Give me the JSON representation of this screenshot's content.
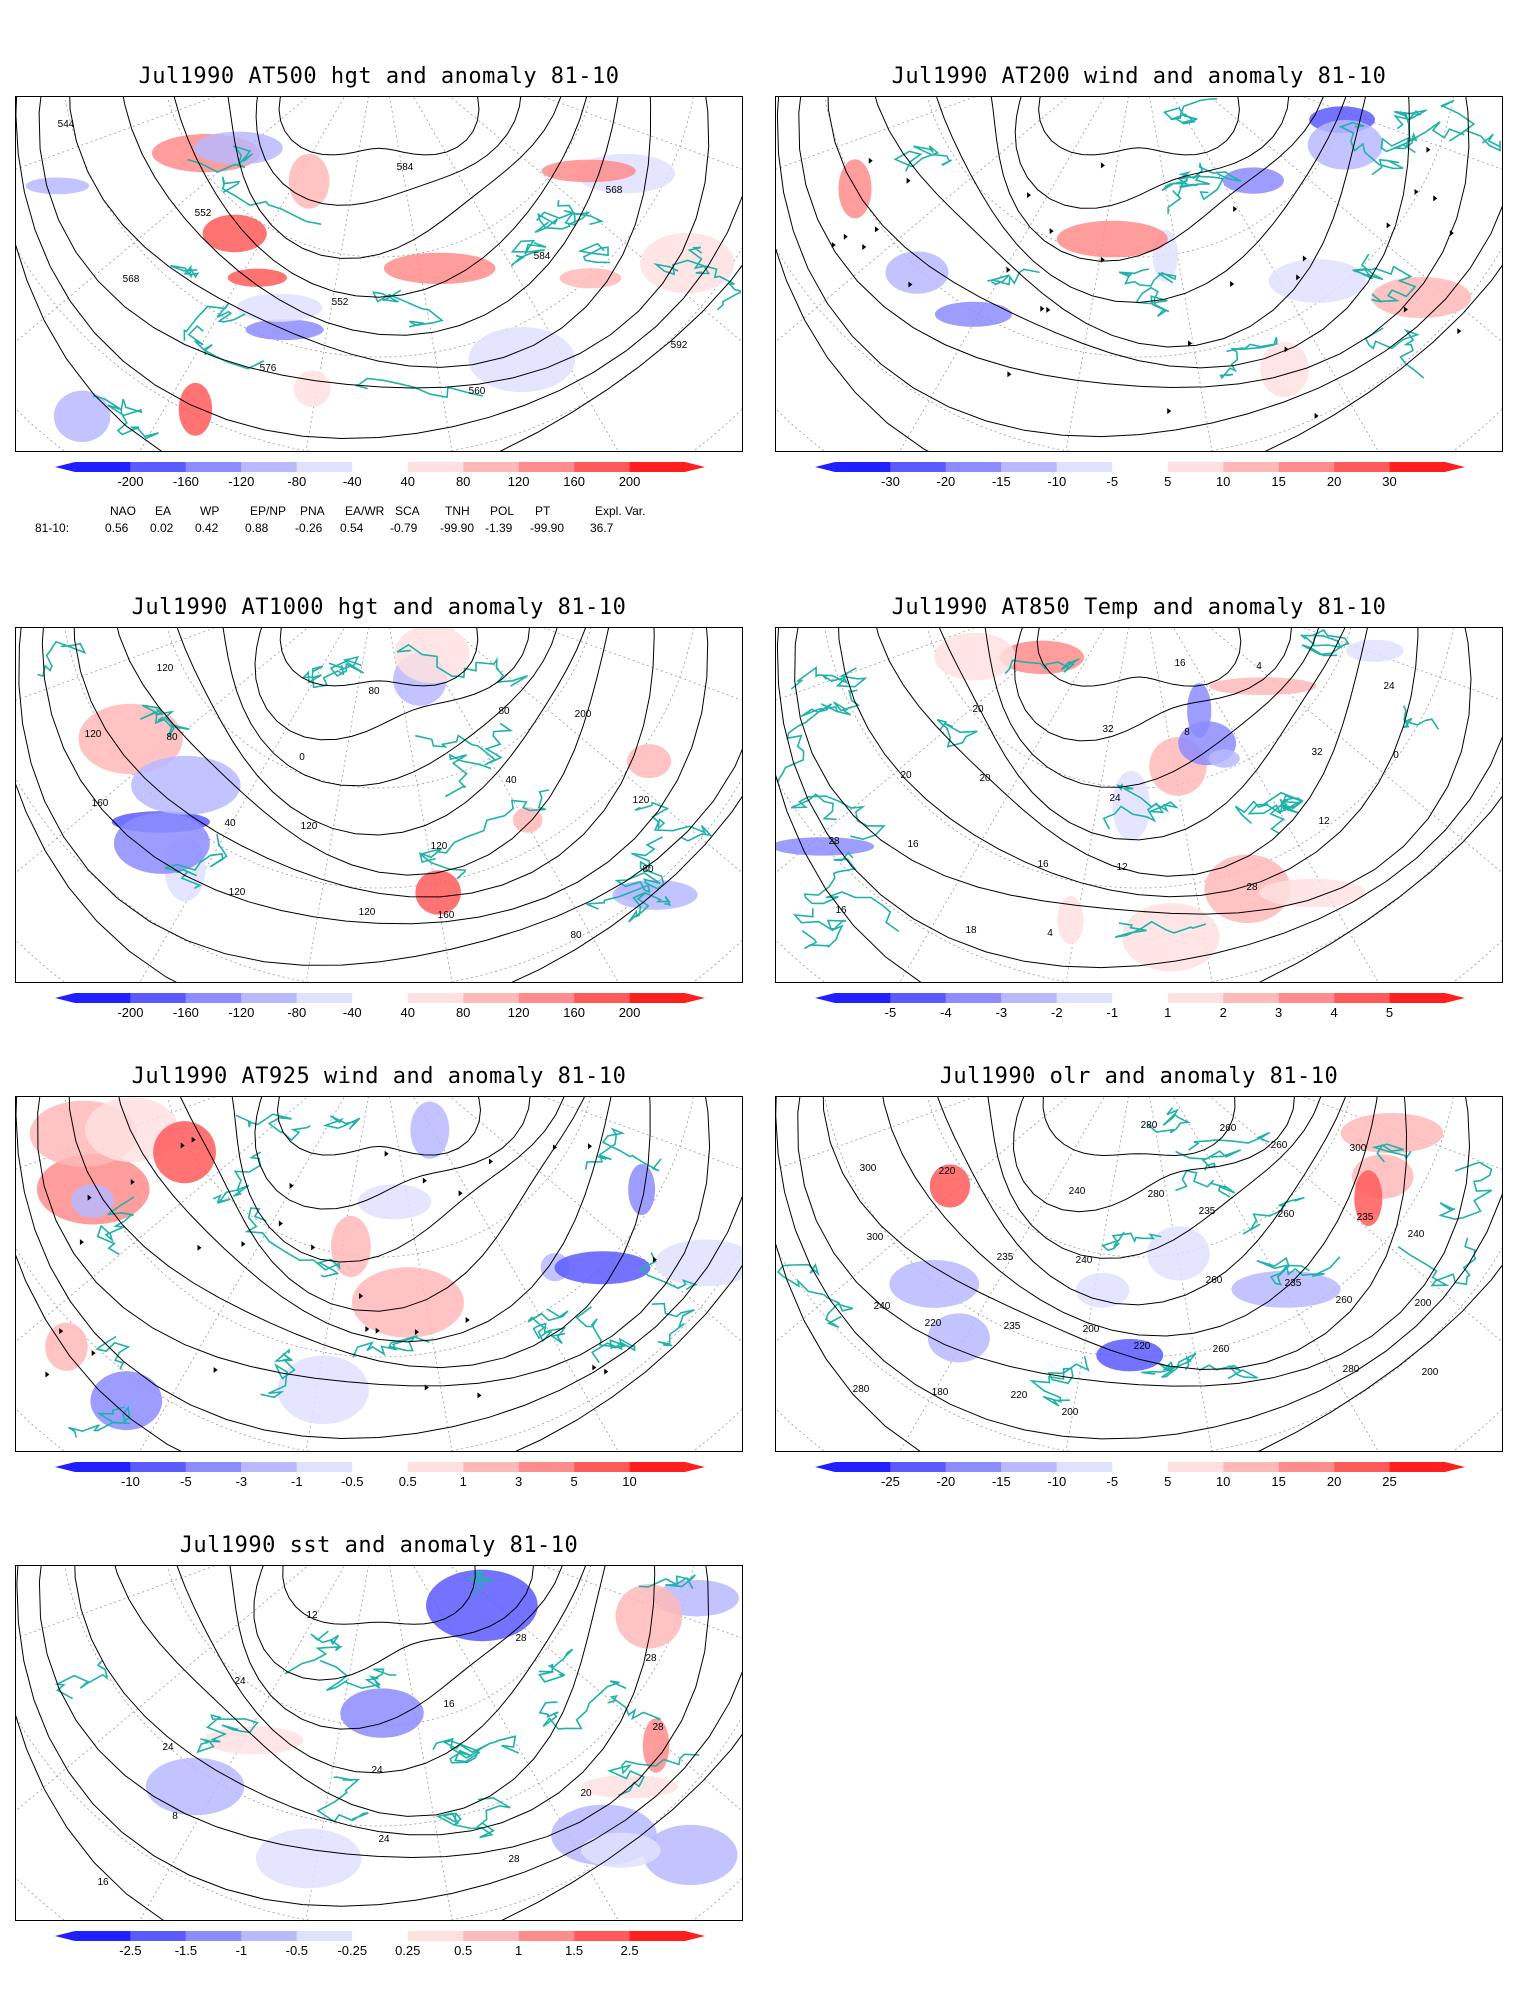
{
  "panels": [
    {
      "id": "at500",
      "title": "Jul1990 AT500 hgt and anomaly 81-10",
      "colorbar": [
        "-200",
        "-160",
        "-120",
        "-80",
        "-40",
        "40",
        "80",
        "120",
        "160",
        "200"
      ],
      "contour_labels": [
        "544",
        "552",
        "552",
        "560",
        "568",
        "568",
        "576",
        "584",
        "584",
        "592"
      ]
    },
    {
      "id": "at200",
      "title": "Jul1990 AT200 wind and anomaly 81-10",
      "colorbar": [
        "-30",
        "-20",
        "-15",
        "-10",
        "-5",
        "5",
        "10",
        "15",
        "20",
        "30"
      ],
      "contour_labels": []
    },
    {
      "id": "at1000",
      "title": "Jul1990 AT1000 hgt and anomaly 81-10",
      "colorbar": [
        "-200",
        "-160",
        "-120",
        "-80",
        "-40",
        "40",
        "80",
        "120",
        "160",
        "200"
      ],
      "contour_labels": [
        "80",
        "120",
        "160",
        "200",
        "160",
        "120",
        "80",
        "40",
        "80",
        "120",
        "0",
        "120",
        "80",
        "120",
        "40",
        "120",
        "80",
        "120"
      ]
    },
    {
      "id": "at850",
      "title": "Jul1990 AT850 Temp and anomaly 81-10",
      "colorbar": [
        "-5",
        "-4",
        "-3",
        "-2",
        "-1",
        "1",
        "2",
        "3",
        "4",
        "5"
      ],
      "contour_labels": [
        "20",
        "12",
        "4",
        "0",
        "16",
        "4",
        "8",
        "12",
        "16",
        "20",
        "24",
        "28",
        "24",
        "20",
        "16",
        "16",
        "32",
        "28",
        "18",
        "32"
      ]
    },
    {
      "id": "at925",
      "title": "Jul1990 AT925 wind and anomaly 81-10",
      "colorbar": [
        "-10",
        "-5",
        "-3",
        "-1",
        "-0.5",
        "0.5",
        "1",
        "3",
        "5",
        "10"
      ],
      "contour_labels": []
    },
    {
      "id": "olr",
      "title": "Jul1990 olr and anomaly 81-10",
      "colorbar": [
        "-25",
        "-20",
        "-15",
        "-10",
        "-5",
        "5",
        "10",
        "15",
        "20",
        "25"
      ],
      "contour_labels": [
        "200",
        "260",
        "235",
        "240",
        "220",
        "280",
        "235",
        "200",
        "220",
        "240",
        "260",
        "300",
        "300",
        "235",
        "280",
        "260",
        "200",
        "180",
        "240",
        "260",
        "280",
        "300",
        "235",
        "220",
        "260",
        "240",
        "220",
        "200",
        "235",
        "260",
        "280"
      ]
    },
    {
      "id": "sst",
      "title": "Jul1990 sst and anomaly 81-10",
      "colorbar": [
        "-2.5",
        "-1.5",
        "-1",
        "-0.5",
        "-0.25",
        "0.25",
        "0.5",
        "1",
        "1.5",
        "2.5"
      ],
      "contour_labels": [
        "24",
        "28",
        "28",
        "8",
        "12",
        "16",
        "20",
        "16",
        "24",
        "24",
        "28",
        "28",
        "24"
      ]
    }
  ],
  "teleconnection_indices": {
    "headers": [
      "NAO",
      "EA",
      "WP",
      "EP/NP",
      "PNA",
      "EA/WR",
      "SCA",
      "TNH",
      "POL",
      "PT",
      "Expl. Var."
    ],
    "row_label": "81-10:",
    "values": [
      "0.56",
      "0.02",
      "0.42",
      "0.88",
      "-0.26",
      "0.54",
      "-0.79",
      "-99.90",
      "-1.39",
      "-99.90",
      "36.7"
    ]
  },
  "colors": {
    "coast": "#20b2aa",
    "contour": "#000000",
    "neg": [
      "#1f1fff",
      "#5a5aff",
      "#8c8cff",
      "#b9b9ff",
      "#e0e0ff"
    ],
    "pos": [
      "#ffe0e0",
      "#ffb9b9",
      "#ff8c8c",
      "#ff5a5a",
      "#ff1f1f"
    ]
  }
}
